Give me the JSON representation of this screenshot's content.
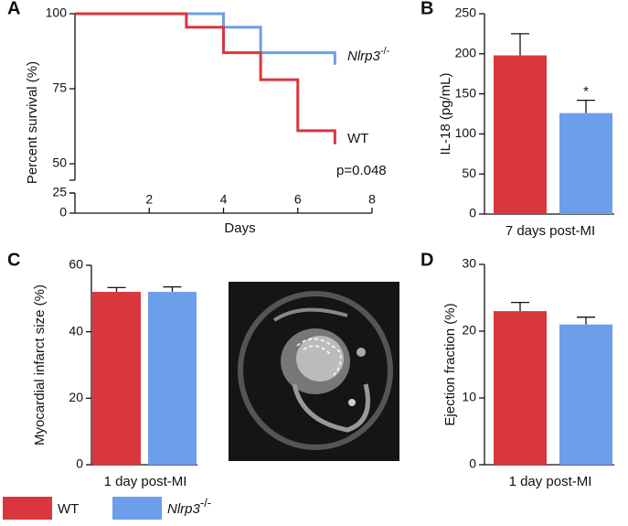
{
  "chart_data": [
    {
      "type": "line",
      "panel": "A",
      "step": "post",
      "xlabel": "Days",
      "ylabel": "Percent survival (%)",
      "xlim": [
        0,
        8
      ],
      "xticks": [
        2,
        4,
        6,
        8
      ],
      "ylim": [
        0,
        100
      ],
      "yticks": [
        0,
        25,
        50,
        75,
        100
      ],
      "axis_break": [
        25,
        50
      ],
      "series": [
        {
          "name": "WT",
          "color": "#d9363e",
          "x": [
            0,
            3,
            4,
            5,
            6,
            7
          ],
          "values": [
            100,
            95.5,
            87,
            78,
            61,
            56.5
          ]
        },
        {
          "name": "Nlrp3",
          "superscript": "-/-",
          "color": "#6d9eeb",
          "x": [
            0,
            4,
            5,
            7
          ],
          "values": [
            100,
            95.5,
            87,
            83
          ]
        }
      ],
      "annotation": "p=0.048"
    },
    {
      "type": "bar",
      "panel": "B",
      "ylabel": "IL-18 (pg/mL)",
      "categories": [
        "7 days post-MI"
      ],
      "ylim": [
        0,
        250
      ],
      "yticks": [
        0,
        50,
        100,
        150,
        200,
        250
      ],
      "series": [
        {
          "color": "#d9363e",
          "values": [
            198
          ],
          "errors": [
            27
          ]
        },
        {
          "color": "#6d9eeb",
          "values": [
            126
          ],
          "errors": [
            16
          ]
        }
      ],
      "annotation": "*"
    },
    {
      "type": "bar",
      "panel": "C",
      "ylabel": "Myocardial infarct size (%)",
      "categories": [
        "1 day post-MI"
      ],
      "ylim": [
        0,
        60
      ],
      "yticks": [
        0,
        20,
        40,
        60
      ],
      "series": [
        {
          "color": "#d9363e",
          "values": [
            52
          ],
          "errors": [
            1.3
          ]
        },
        {
          "color": "#6d9eeb",
          "values": [
            52
          ],
          "errors": [
            1.5
          ]
        }
      ]
    },
    {
      "type": "bar",
      "panel": "D",
      "ylabel": "Ejection fraction (%)",
      "categories": [
        "1 day post-MI"
      ],
      "ylim": [
        0,
        30
      ],
      "yticks": [
        0,
        10,
        20,
        30
      ],
      "series": [
        {
          "color": "#d9363e",
          "values": [
            23
          ],
          "errors": [
            1.3
          ]
        },
        {
          "color": "#6d9eeb",
          "values": [
            21
          ],
          "errors": [
            1.1
          ]
        }
      ]
    }
  ],
  "legend": [
    {
      "name": "WT",
      "color": "#d9363e"
    },
    {
      "name": "Nlrp3",
      "superscript": "-/-",
      "color": "#6d9eeb"
    }
  ]
}
